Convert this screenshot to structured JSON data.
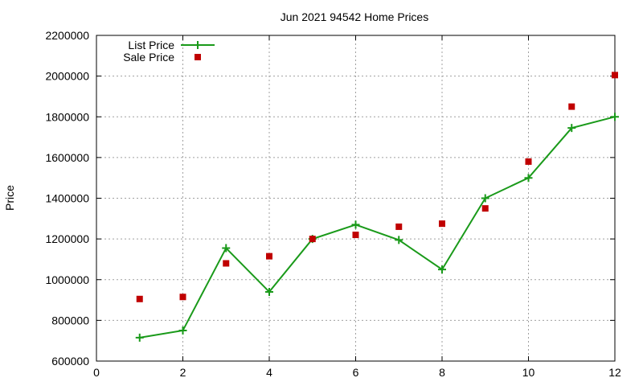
{
  "chart_data": {
    "type": "line",
    "title": "Jun 2021 94542 Home Prices",
    "xlabel": "",
    "ylabel": "Price",
    "xlim": [
      0,
      12
    ],
    "ylim": [
      600000,
      2200000
    ],
    "x_ticks": [
      0,
      2,
      4,
      6,
      8,
      10,
      12
    ],
    "y_ticks": [
      600000,
      800000,
      1000000,
      1200000,
      1400000,
      1600000,
      1800000,
      2000000,
      2200000
    ],
    "grid": true,
    "legend_position": "top-left",
    "series": [
      {
        "name": "List Price",
        "style": "line-points",
        "color": "#1a9a1a",
        "x": [
          1,
          2,
          3,
          4,
          5,
          6,
          7,
          8,
          9,
          10,
          11,
          12
        ],
        "y": [
          715000,
          750000,
          1155000,
          940000,
          1200000,
          1270000,
          1195000,
          1050000,
          1400000,
          1500000,
          1745000,
          1800000
        ]
      },
      {
        "name": "Sale Price",
        "style": "points",
        "color": "#c00000",
        "x": [
          1,
          2,
          3,
          4,
          5,
          6,
          7,
          8,
          9,
          10,
          11,
          12
        ],
        "y": [
          905000,
          915000,
          1080000,
          1115000,
          1200000,
          1220000,
          1260000,
          1275000,
          1350000,
          1580000,
          1850000,
          2005000
        ]
      }
    ]
  }
}
